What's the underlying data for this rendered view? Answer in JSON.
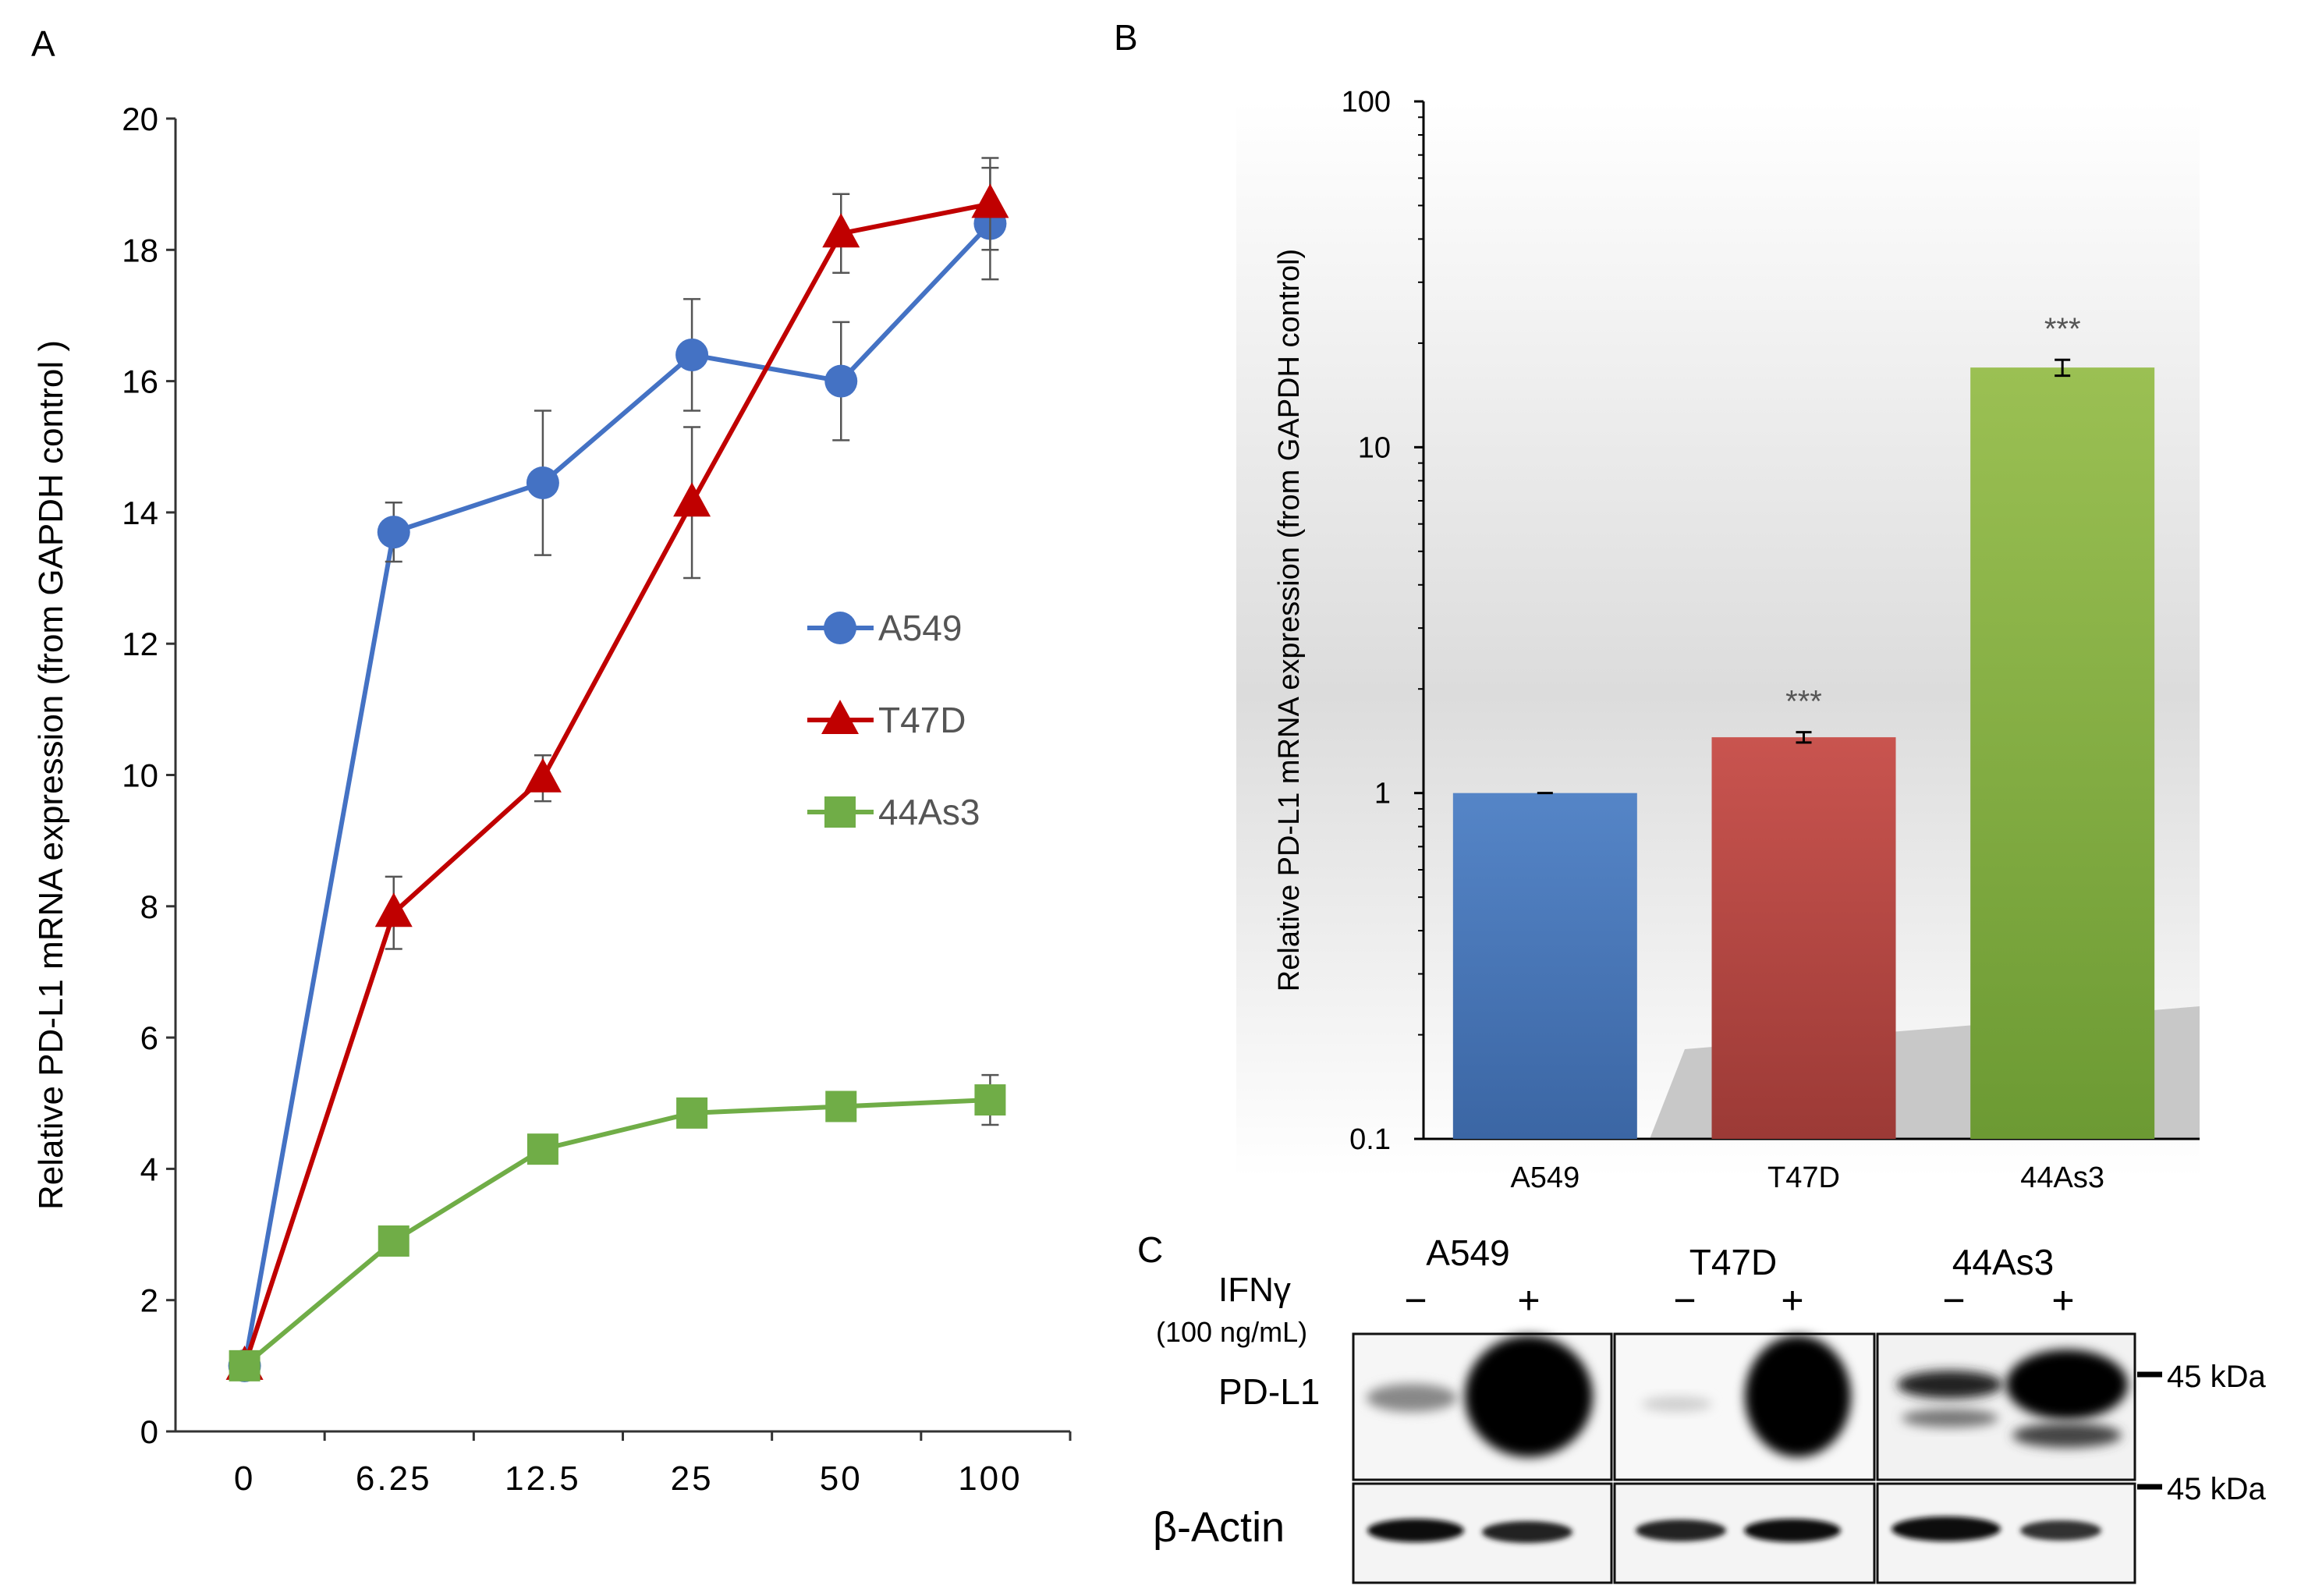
{
  "panels": {
    "a": "A",
    "b": "B",
    "c": "C"
  },
  "chart_data": [
    {
      "panel": "A",
      "type": "line",
      "title": "",
      "xlabel": "",
      "ylabel": "Relative PD-L1 mRNA expression (from GAPDH control )",
      "ylim": [
        0,
        20
      ],
      "yticks": [
        0,
        2,
        4,
        6,
        8,
        10,
        12,
        14,
        16,
        18,
        20
      ],
      "categories": [
        "0",
        "6.25",
        "12.5",
        "25",
        "50",
        "100"
      ],
      "grid": false,
      "legend_position": "center-right",
      "series": [
        {
          "name": "A549",
          "color": "#4472c4",
          "marker": "circle",
          "values": [
            1.0,
            13.7,
            14.45,
            16.4,
            16.0,
            18.4
          ],
          "errors": [
            0.0,
            0.45,
            1.1,
            0.85,
            0.9,
            0.85
          ]
        },
        {
          "name": "T47D",
          "color": "#c00000",
          "marker": "triangle",
          "values": [
            1.0,
            7.9,
            9.95,
            14.15,
            18.25,
            18.7
          ],
          "errors": [
            0.0,
            0.55,
            0.35,
            1.15,
            0.6,
            0.7
          ]
        },
        {
          "name": "44As3",
          "color": "#70ad47",
          "marker": "square",
          "values": [
            1.0,
            2.9,
            4.3,
            4.85,
            4.95,
            5.05
          ],
          "errors": [
            0.0,
            0.0,
            0.0,
            0.0,
            0.0,
            0.38
          ]
        }
      ]
    },
    {
      "panel": "B",
      "type": "bar",
      "title": "",
      "xlabel": "",
      "ylabel": "Relative PD-L1 mRNA expression (from GAPDH control)",
      "yscale": "log",
      "ylim": [
        0.1,
        100
      ],
      "yticks": [
        "0.1",
        "1",
        "10",
        "100"
      ],
      "categories": [
        "A549",
        "T47D",
        "44As3"
      ],
      "values": [
        1.0,
        1.45,
        17.0
      ],
      "errors": [
        0.0,
        0.05,
        0.9
      ],
      "significance": [
        "",
        "***",
        "***"
      ],
      "colors": [
        "#4472c4",
        "#c0504d",
        "#7aad41"
      ]
    }
  ],
  "blot": {
    "treatment_label": "IFNγ",
    "dose_label": "(100 ng/mL)",
    "cell_lines": [
      "A549",
      "T47D",
      "44As3"
    ],
    "lane_signs": [
      "−",
      "+"
    ],
    "rows": [
      "PD-L1",
      "β-Actin"
    ],
    "markers": [
      "45 kDa",
      "45 kDa"
    ]
  }
}
